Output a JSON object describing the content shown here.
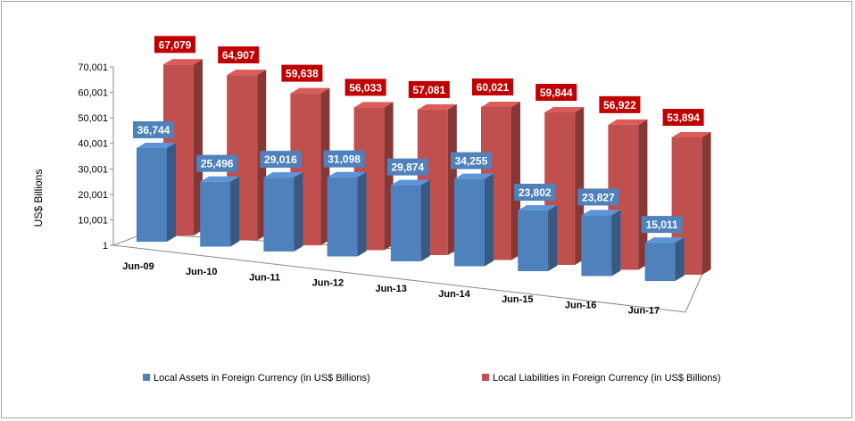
{
  "chart_data": {
    "type": "bar",
    "style": "3d-clustered-column",
    "categories": [
      "Jun-09",
      "Jun-10",
      "Jun-11",
      "Jun-12",
      "Jun-13",
      "Jun-14",
      "Jun-15",
      "Jun-16",
      "Jun-17"
    ],
    "series": [
      {
        "name": "Local Assets in Foreign Currency (in US$ Billions)",
        "values": [
          36744,
          25496,
          29016,
          31098,
          29874,
          34255,
          23802,
          23827,
          15011
        ],
        "labels": [
          "36,744",
          "25,496",
          "29,016",
          "31,098",
          "29,874",
          "34,255",
          "23,802",
          "23,827",
          "15,011"
        ],
        "color": "#4f81bd",
        "label_bg": "#4f81bd"
      },
      {
        "name": "Local Liabilities in Foreign Currency (in US$ Billions)",
        "values": [
          67079,
          64907,
          59638,
          56033,
          57081,
          60021,
          59844,
          56922,
          53894
        ],
        "labels": [
          "67,079",
          "64,907",
          "59,638",
          "56,033",
          "57,081",
          "60,021",
          "59,844",
          "56,922",
          "53,894"
        ],
        "color": "#c0504d",
        "label_bg": "#c00000"
      }
    ],
    "y_ticks": [
      "1",
      "10,001",
      "20,001",
      "30,001",
      "40,001",
      "50,001",
      "60,001",
      "70,001"
    ],
    "ylim": [
      1,
      70001
    ],
    "ylabel": "US$ Billions",
    "xlabel": "",
    "title": "",
    "legend_position": "bottom",
    "grid": false
  }
}
